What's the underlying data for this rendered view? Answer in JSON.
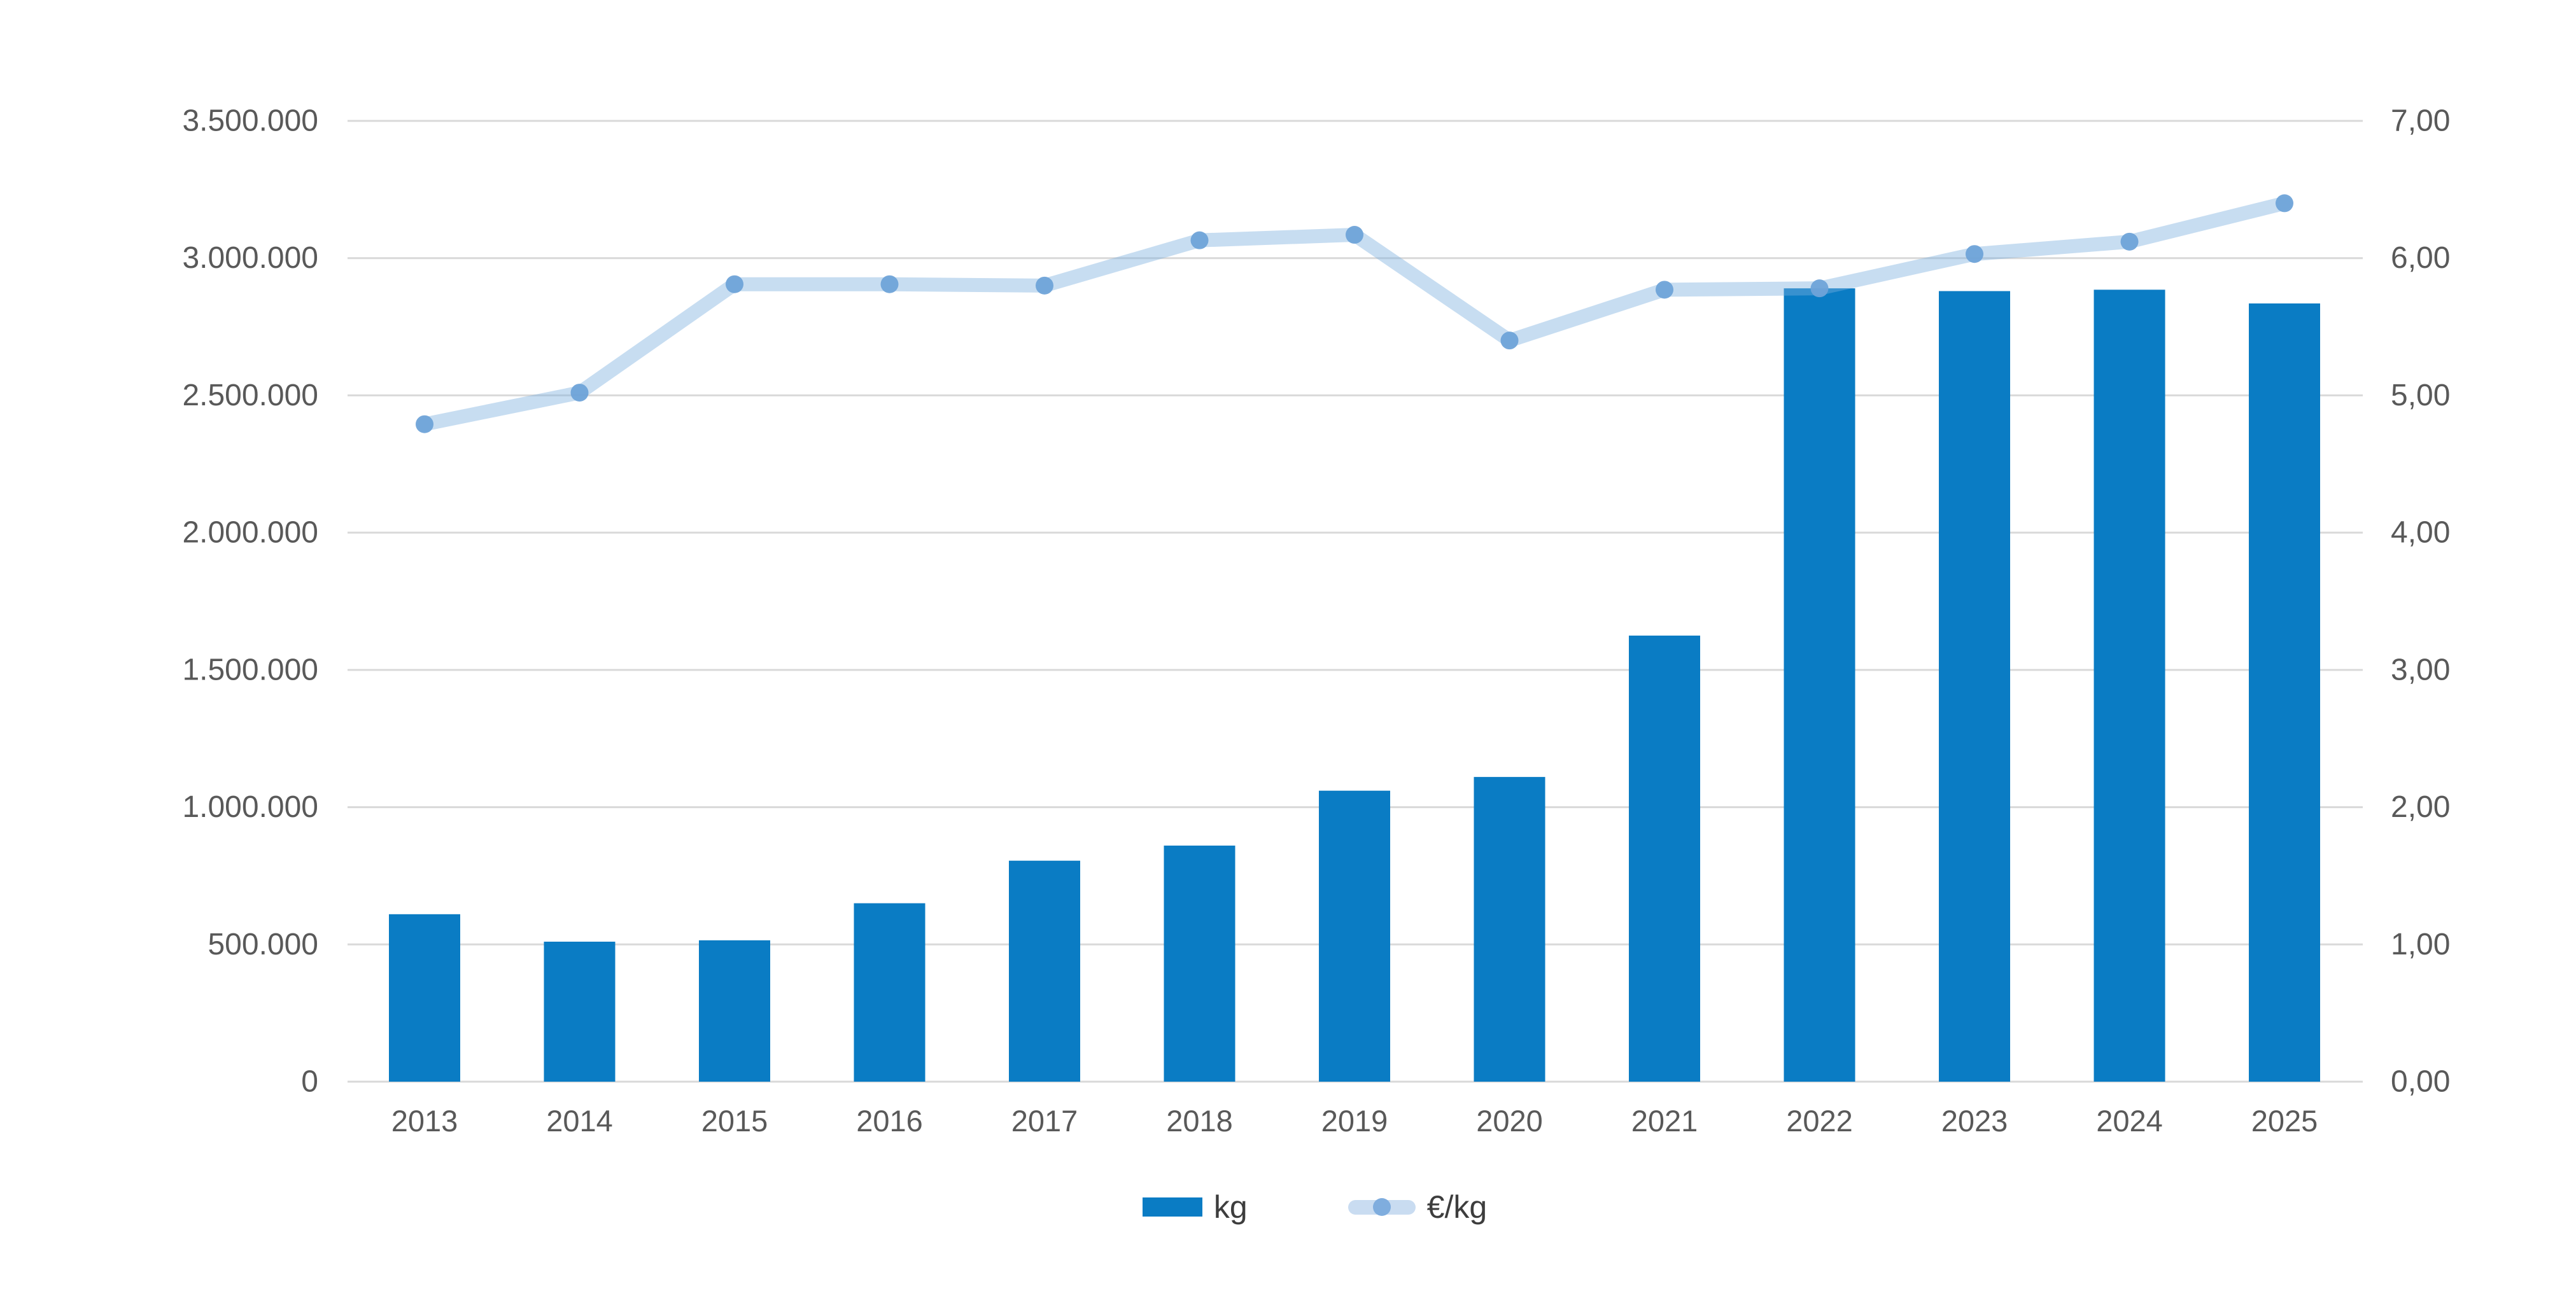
{
  "chart_data": {
    "type": "combo",
    "title": "",
    "categories": [
      "2013",
      "2014",
      "2015",
      "2016",
      "2017",
      "2018",
      "2019",
      "2020",
      "2021",
      "2022",
      "2023",
      "2024",
      "2025"
    ],
    "series": [
      {
        "name": "kg",
        "type": "bar",
        "axis": "left",
        "values": [
          610000,
          510000,
          515000,
          650000,
          805000,
          860000,
          1060000,
          1110000,
          1625000,
          2890000,
          2880000,
          2885000,
          2835000
        ]
      },
      {
        "name": "€/kg",
        "type": "line",
        "axis": "right",
        "values": [
          4.79,
          5.02,
          5.81,
          5.81,
          5.8,
          6.13,
          6.17,
          5.4,
          5.77,
          5.78,
          6.03,
          6.12,
          6.4
        ]
      }
    ],
    "left_axis": {
      "min": 0,
      "max": 3500000,
      "step": 500000,
      "tick_labels": [
        "0",
        "500.000",
        "1.000.000",
        "1.500.000",
        "2.000.000",
        "2.500.000",
        "3.000.000",
        "3.500.000"
      ]
    },
    "right_axis": {
      "min": 0,
      "max": 7,
      "step": 1,
      "tick_labels": [
        "0,00",
        "1,00",
        "2,00",
        "3,00",
        "4,00",
        "5,00",
        "6,00",
        "7,00"
      ]
    },
    "grid": true,
    "legend_position": "bottom",
    "colors": {
      "bar": "#0a7cc4",
      "line": "rgba(122,174,222,0.42)",
      "line_solid": "#c9dcf1",
      "dot": "rgba(111,163,216,0.95)",
      "dot_solid": "#7fadde",
      "grid": "#d9d9d9",
      "axis_text": "#595959",
      "legend_text": "#3d3d3d",
      "background": "#ffffff"
    }
  },
  "legend": {
    "kg_label": "kg",
    "eur_per_kg_label": "€/kg"
  }
}
